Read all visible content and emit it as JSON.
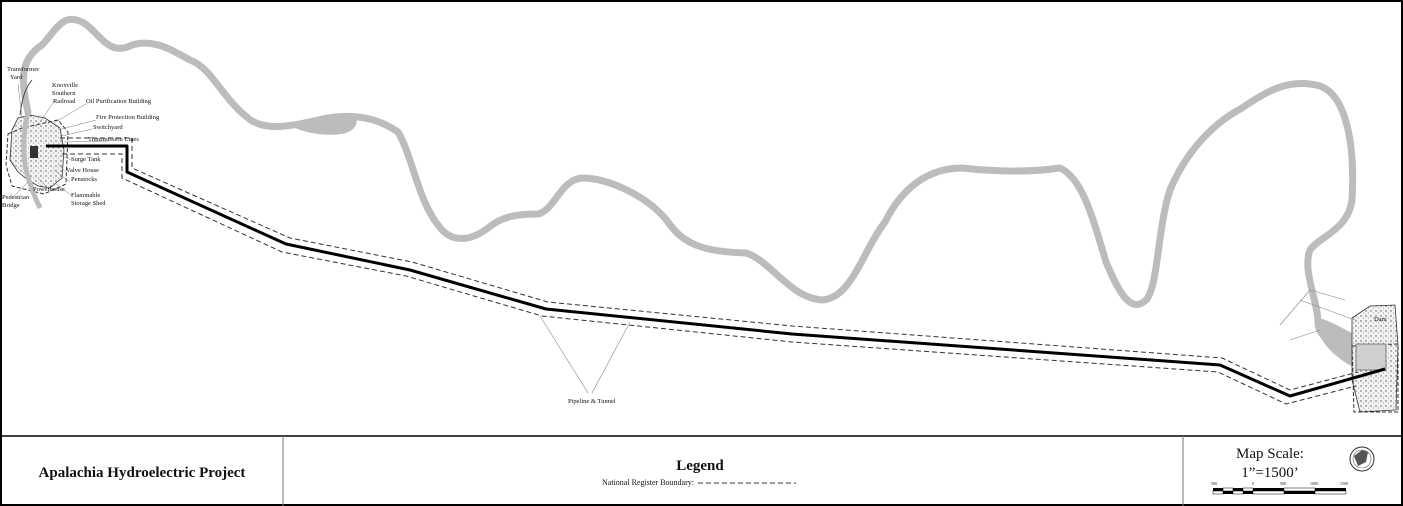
{
  "map": {
    "project_title": "Apalachia Hydroelectric Project",
    "legend": {
      "heading": "Legend",
      "boundary_label": "National Register Boundary:"
    },
    "scale": {
      "heading": "Map Scale:",
      "ratio": "1”=1500’",
      "ticks": [
        "500",
        "0",
        "500",
        "1000",
        "1500"
      ]
    },
    "north_arrow_text": "NORTH",
    "labels": {
      "transformer_yard": [
        "Transformer",
        "Yard"
      ],
      "railroad": [
        "Knoxville",
        "Southern",
        "Railroad"
      ],
      "oil_purification": "Oil Purification Building",
      "fire_protection": "Fire Protection Building",
      "switchyard": "Switchyard",
      "transmission_lines": "Transmission Lines",
      "surge_tank": "Surge Tank",
      "valve_house": "Valve House",
      "penstocks": "Penstocks",
      "powerhouse": "Powerhouse",
      "flammable_storage": [
        "Flammable",
        "Storage Shed"
      ],
      "pedestrian_bridge": [
        "Pedestrian",
        "Bridge"
      ],
      "pipeline_tunnel": "Pipeline & Tunnel",
      "dam": "Dam"
    },
    "colors": {
      "river": "#bcbcbc",
      "pipeline": "#000000",
      "boundary": "#333333",
      "stipple_area": "#e8e8e8"
    }
  }
}
